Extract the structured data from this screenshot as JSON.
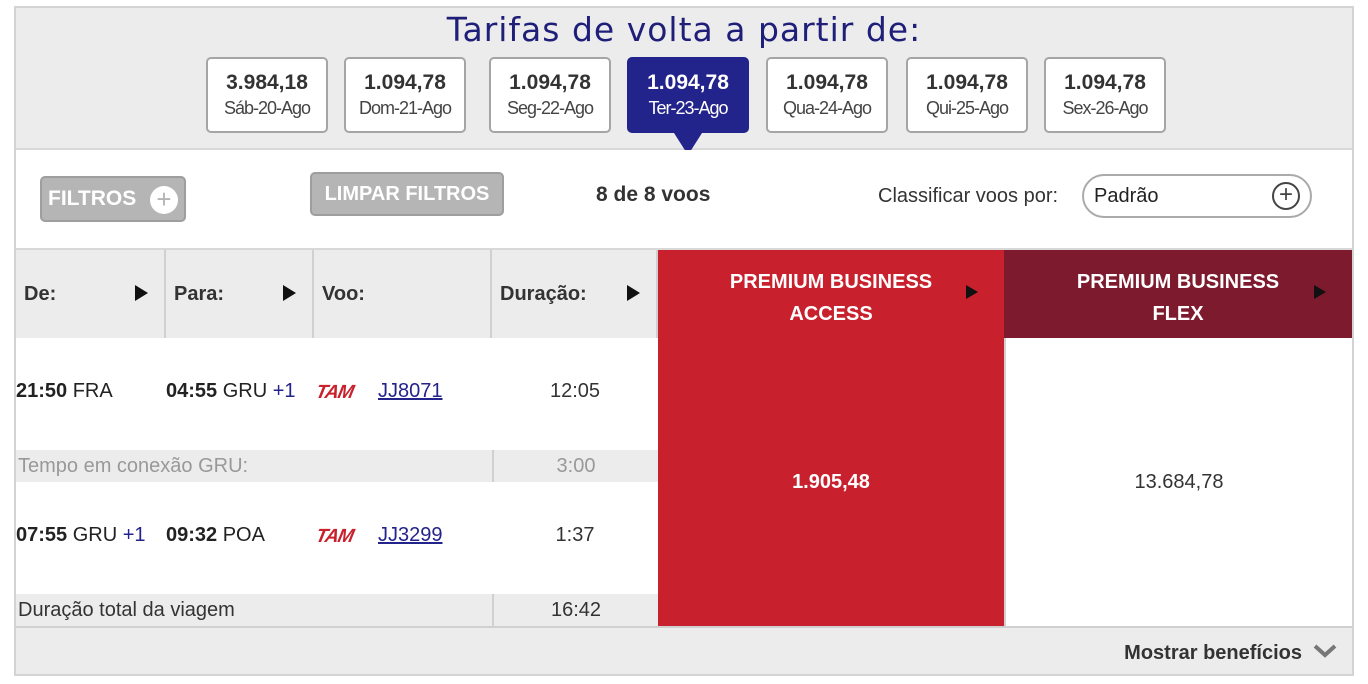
{
  "dates": {
    "title": "Tarifas de volta a partir de:",
    "items": [
      {
        "price": "3.984,18",
        "day": "Sáb-20-Ago"
      },
      {
        "price": "1.094,78",
        "day": "Dom-21-Ago"
      },
      {
        "price": "1.094,78",
        "day": "Seg-22-Ago"
      },
      {
        "price": "1.094,78",
        "day": "Ter-23-Ago",
        "selected": true
      },
      {
        "price": "1.094,78",
        "day": "Qua-24-Ago"
      },
      {
        "price": "1.094,78",
        "day": "Qui-25-Ago"
      },
      {
        "price": "1.094,78",
        "day": "Sex-26-Ago"
      }
    ]
  },
  "filters": {
    "filtros_label": "FILTROS",
    "plus_glyph": "+",
    "limpar_label": "LIMPAR FILTROS",
    "count": "8 de 8 voos",
    "sort_label": "Classificar voos por:",
    "sort_value": "Padrão"
  },
  "columns": {
    "de": "De:",
    "para": "Para:",
    "voo": "Voo:",
    "duracao": "Duração:",
    "fare1": [
      "PREMIUM BUSINESS",
      "ACCESS"
    ],
    "fare2": [
      "PREMIUM BUSINESS",
      "FLEX"
    ]
  },
  "segments": [
    {
      "dep_time": "21:50",
      "dep_code": "FRA",
      "dep_plus": "",
      "arr_time": "04:55",
      "arr_code": "GRU",
      "arr_plus": "+1",
      "airline": "TAM",
      "flight": "JJ8071",
      "duration": "12:05"
    },
    {
      "dep_time": "07:55",
      "dep_code": "GRU",
      "dep_plus": "+1",
      "arr_time": "09:32",
      "arr_code": "POA",
      "arr_plus": "",
      "airline": "TAM",
      "flight": "JJ3299",
      "duration": "1:37"
    }
  ],
  "connection": {
    "label": "Tempo em conexão GRU:",
    "value": "3:00"
  },
  "total": {
    "label": "Duração total da viagem",
    "value": "16:42"
  },
  "fares": {
    "access": "1.905,48",
    "flex": "13.684,78"
  },
  "footer": {
    "benefits": "Mostrar benefícios"
  },
  "colors": {
    "navy": "#23238c",
    "access_red": "#c8202c",
    "flex_red": "#7d1a2e",
    "gray": "#ececec"
  },
  "icons": {
    "sort_arrow": "triangle-right-icon",
    "benefits": "chevron-down-icon",
    "add": "plus-circle-icon"
  }
}
